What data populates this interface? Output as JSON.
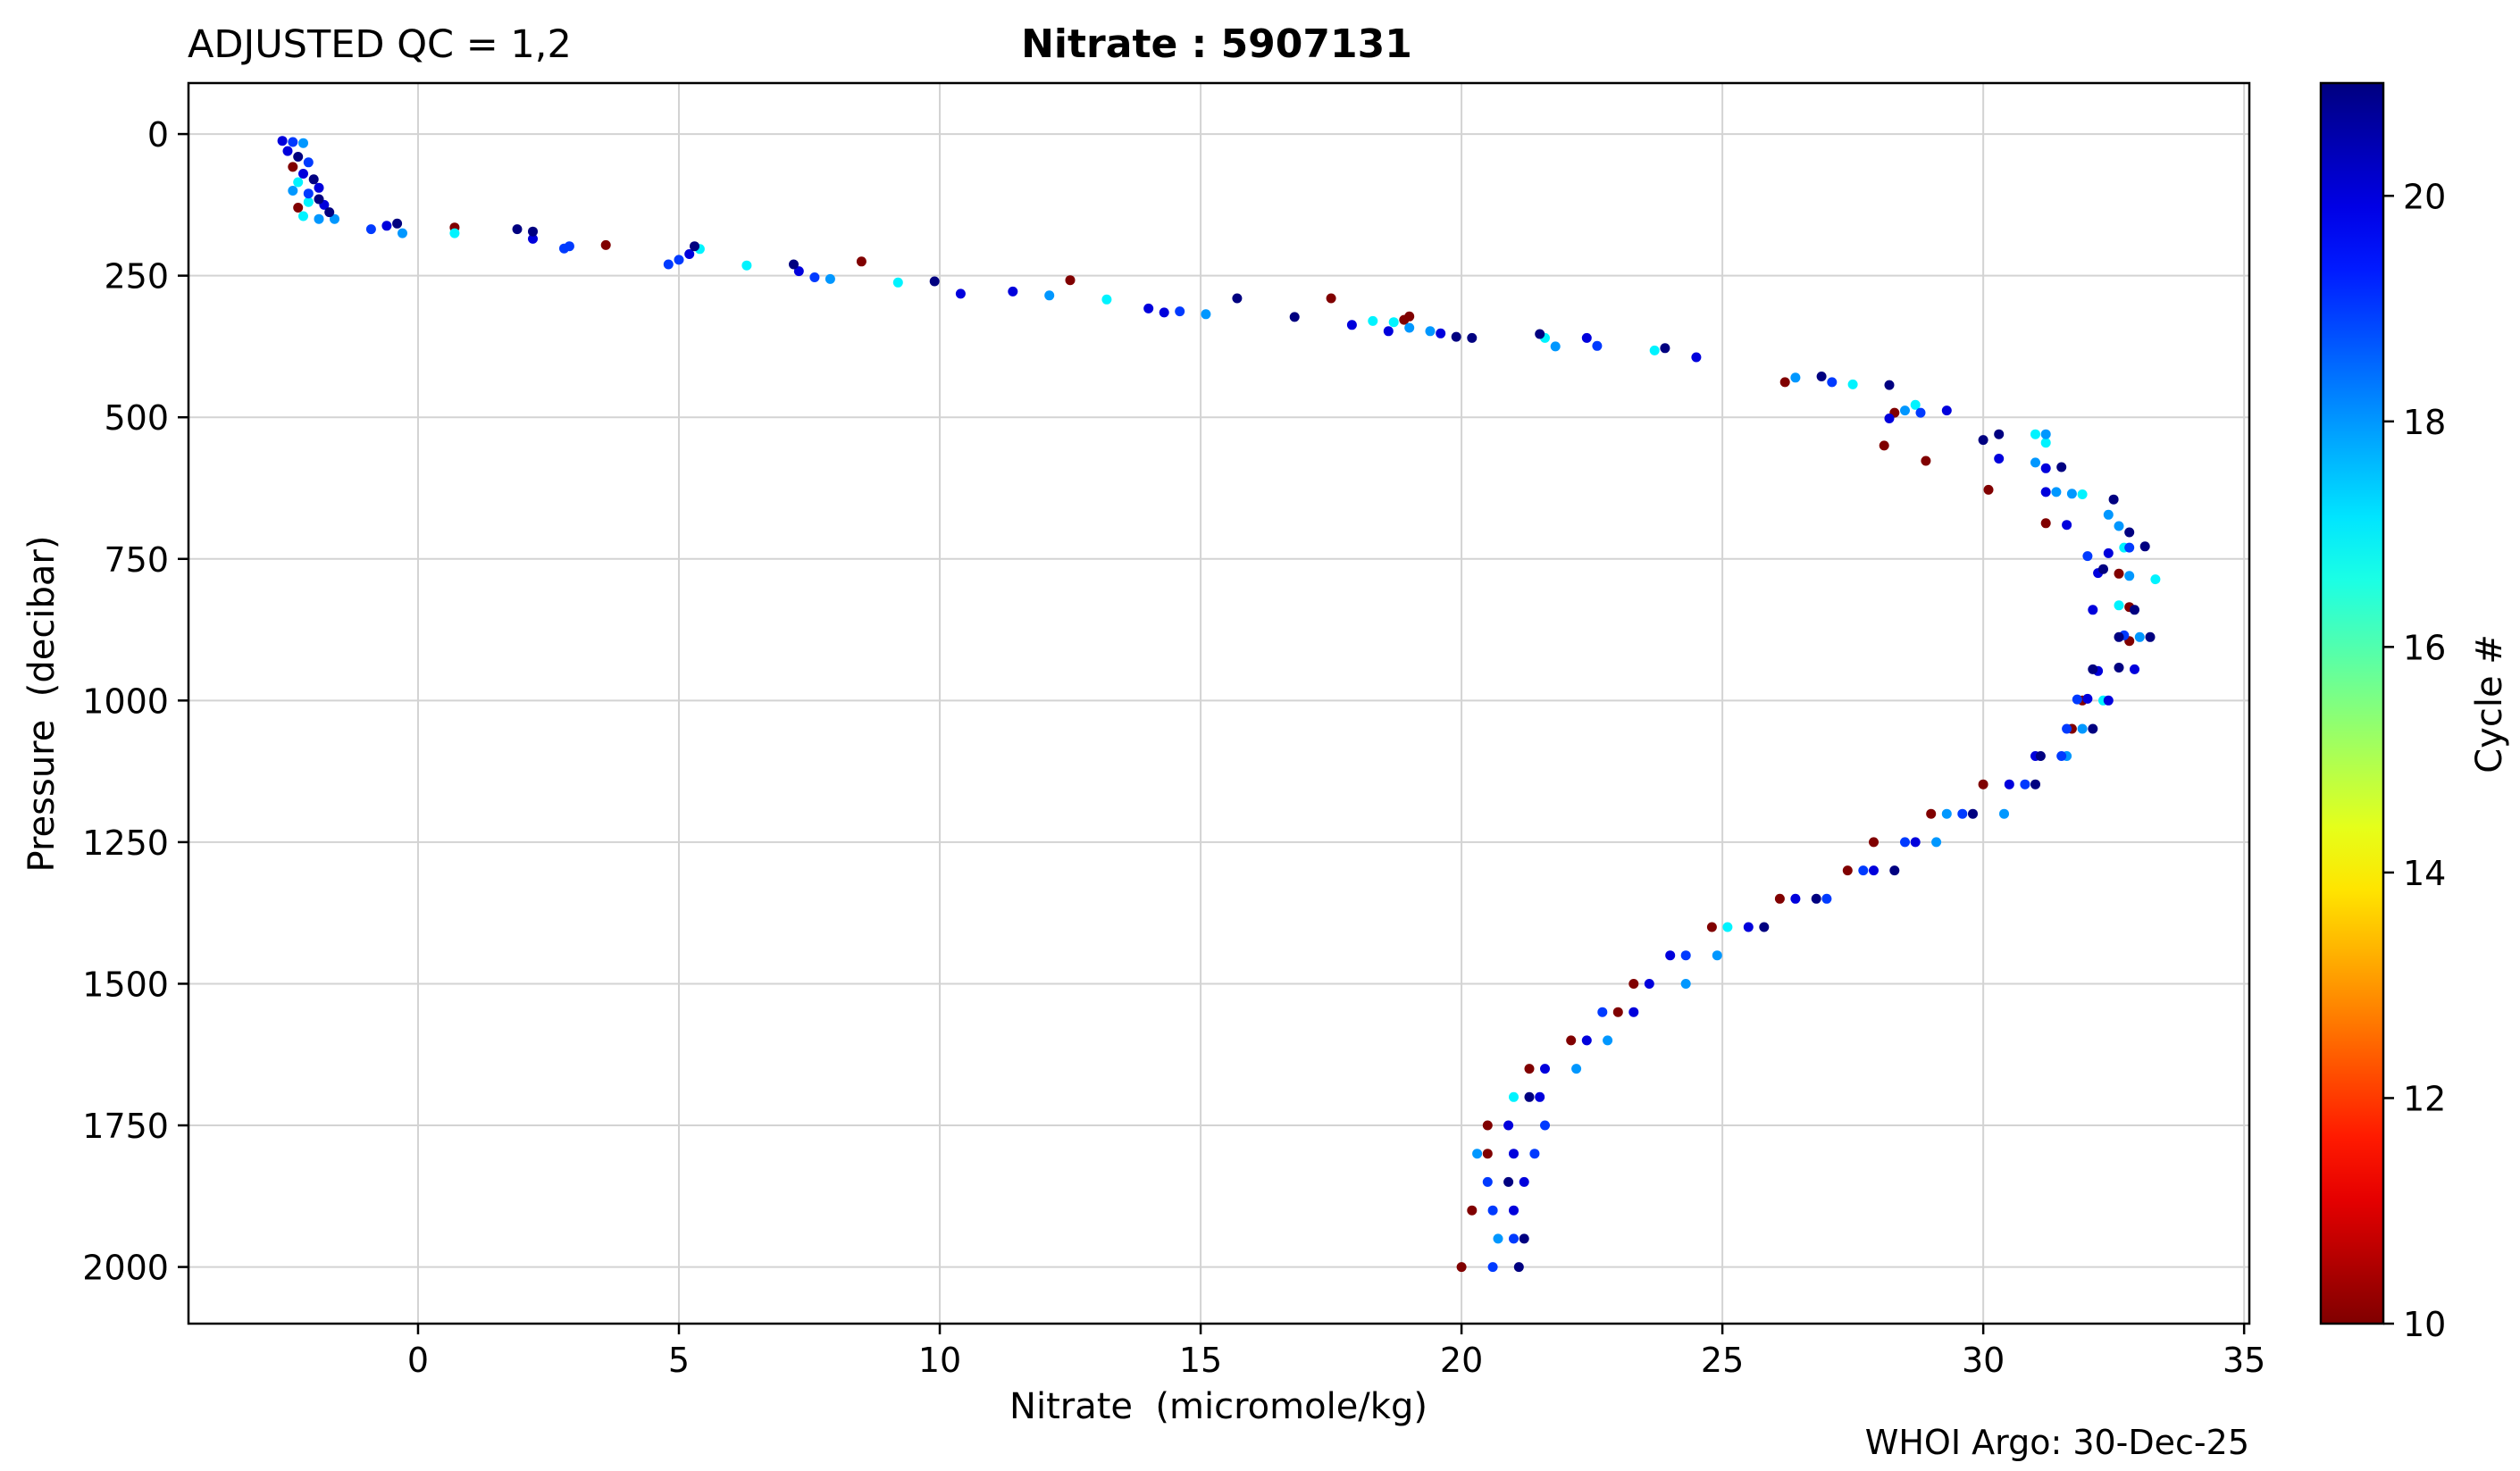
{
  "header": {
    "qc_label": "ADJUSTED QC = 1,2",
    "title_param": "Nitrate",
    "title_sep": " : ",
    "title_float": "5907131"
  },
  "footer": {
    "credit": "WHOI Argo: 30-Dec-25"
  },
  "colorbar": {
    "label": "Cycle #",
    "range": [
      10,
      21
    ],
    "ticks": [
      10,
      12,
      14,
      16,
      18,
      20
    ],
    "colormap": "jet",
    "colors": [
      "#800000",
      "#ff0000",
      "#ff8000",
      "#ffff00",
      "#80ff80",
      "#00ffff",
      "#0080ff",
      "#0000ff",
      "#000080"
    ]
  },
  "chart_data": {
    "type": "scatter",
    "xlabel": "Nitrate  (micromole/kg)",
    "ylabel": "Pressure  (decibar)",
    "xlim": [
      -4.4,
      35.1
    ],
    "ylim": [
      2100,
      -90
    ],
    "y_inverted": true,
    "xticks": [
      0,
      5,
      10,
      15,
      20,
      25,
      30,
      35
    ],
    "yticks": [
      0,
      250,
      500,
      750,
      1000,
      1250,
      1500,
      1750,
      2000
    ],
    "grid": true,
    "color_by": "cycle",
    "points": [
      {
        "x": -2.6,
        "y": 12,
        "c": 20
      },
      {
        "x": -2.4,
        "y": 14,
        "c": 19
      },
      {
        "x": -2.2,
        "y": 16,
        "c": 18
      },
      {
        "x": -2.5,
        "y": 30,
        "c": 20
      },
      {
        "x": -2.3,
        "y": 40,
        "c": 21
      },
      {
        "x": -2.1,
        "y": 50,
        "c": 19
      },
      {
        "x": -2.4,
        "y": 58,
        "c": 10
      },
      {
        "x": -2.2,
        "y": 70,
        "c": 20
      },
      {
        "x": -2.0,
        "y": 80,
        "c": 21
      },
      {
        "x": -2.3,
        "y": 85,
        "c": 17
      },
      {
        "x": -1.9,
        "y": 95,
        "c": 20
      },
      {
        "x": -2.1,
        "y": 105,
        "c": 19
      },
      {
        "x": -1.9,
        "y": 115,
        "c": 21
      },
      {
        "x": -1.8,
        "y": 125,
        "c": 20
      },
      {
        "x": -2.3,
        "y": 130,
        "c": 10
      },
      {
        "x": -1.7,
        "y": 138,
        "c": 21
      },
      {
        "x": -2.2,
        "y": 145,
        "c": 17
      },
      {
        "x": -1.9,
        "y": 150,
        "c": 18
      },
      {
        "x": -1.6,
        "y": 150,
        "c": 18
      },
      {
        "x": -2.1,
        "y": 120,
        "c": 17
      },
      {
        "x": -2.4,
        "y": 100,
        "c": 18
      },
      {
        "x": -0.9,
        "y": 168,
        "c": 19
      },
      {
        "x": -0.6,
        "y": 162,
        "c": 20
      },
      {
        "x": -0.4,
        "y": 158,
        "c": 21
      },
      {
        "x": -0.3,
        "y": 175,
        "c": 18
      },
      {
        "x": 0.7,
        "y": 165,
        "c": 10
      },
      {
        "x": 0.7,
        "y": 175,
        "c": 17
      },
      {
        "x": 1.9,
        "y": 168,
        "c": 21
      },
      {
        "x": 2.2,
        "y": 172,
        "c": 21
      },
      {
        "x": 2.2,
        "y": 185,
        "c": 20
      },
      {
        "x": 2.8,
        "y": 202,
        "c": 19
      },
      {
        "x": 2.9,
        "y": 198,
        "c": 19
      },
      {
        "x": 3.6,
        "y": 196,
        "c": 10
      },
      {
        "x": 4.8,
        "y": 230,
        "c": 19
      },
      {
        "x": 5.0,
        "y": 222,
        "c": 19
      },
      {
        "x": 5.2,
        "y": 212,
        "c": 20
      },
      {
        "x": 5.3,
        "y": 198,
        "c": 21
      },
      {
        "x": 5.4,
        "y": 203,
        "c": 17
      },
      {
        "x": 6.3,
        "y": 232,
        "c": 17
      },
      {
        "x": 7.2,
        "y": 230,
        "c": 21
      },
      {
        "x": 7.3,
        "y": 242,
        "c": 20
      },
      {
        "x": 7.6,
        "y": 253,
        "c": 19
      },
      {
        "x": 7.9,
        "y": 256,
        "c": 18
      },
      {
        "x": 8.5,
        "y": 225,
        "c": 10
      },
      {
        "x": 9.2,
        "y": 262,
        "c": 17
      },
      {
        "x": 9.9,
        "y": 260,
        "c": 21
      },
      {
        "x": 10.4,
        "y": 282,
        "c": 20
      },
      {
        "x": 11.4,
        "y": 278,
        "c": 20
      },
      {
        "x": 12.1,
        "y": 285,
        "c": 18
      },
      {
        "x": 12.5,
        "y": 258,
        "c": 10
      },
      {
        "x": 13.2,
        "y": 292,
        "c": 17
      },
      {
        "x": 14.0,
        "y": 308,
        "c": 20
      },
      {
        "x": 14.3,
        "y": 315,
        "c": 20
      },
      {
        "x": 14.6,
        "y": 313,
        "c": 19
      },
      {
        "x": 15.1,
        "y": 318,
        "c": 18
      },
      {
        "x": 15.7,
        "y": 290,
        "c": 21
      },
      {
        "x": 16.8,
        "y": 323,
        "c": 21
      },
      {
        "x": 17.5,
        "y": 290,
        "c": 10
      },
      {
        "x": 17.9,
        "y": 337,
        "c": 20
      },
      {
        "x": 18.3,
        "y": 330,
        "c": 17
      },
      {
        "x": 18.6,
        "y": 348,
        "c": 20
      },
      {
        "x": 18.7,
        "y": 332,
        "c": 17
      },
      {
        "x": 18.9,
        "y": 328,
        "c": 10
      },
      {
        "x": 19.0,
        "y": 322,
        "c": 10
      },
      {
        "x": 19.0,
        "y": 342,
        "c": 18
      },
      {
        "x": 19.4,
        "y": 348,
        "c": 18
      },
      {
        "x": 19.6,
        "y": 352,
        "c": 20
      },
      {
        "x": 19.9,
        "y": 358,
        "c": 21
      },
      {
        "x": 20.2,
        "y": 360,
        "c": 21
      },
      {
        "x": 21.5,
        "y": 353,
        "c": 21
      },
      {
        "x": 21.6,
        "y": 360,
        "c": 17
      },
      {
        "x": 21.8,
        "y": 375,
        "c": 18
      },
      {
        "x": 22.4,
        "y": 360,
        "c": 20
      },
      {
        "x": 22.6,
        "y": 374,
        "c": 19
      },
      {
        "x": 23.7,
        "y": 382,
        "c": 17
      },
      {
        "x": 23.9,
        "y": 378,
        "c": 21
      },
      {
        "x": 24.5,
        "y": 394,
        "c": 20
      },
      {
        "x": 26.2,
        "y": 438,
        "c": 10
      },
      {
        "x": 26.4,
        "y": 430,
        "c": 18
      },
      {
        "x": 26.9,
        "y": 428,
        "c": 21
      },
      {
        "x": 27.1,
        "y": 438,
        "c": 19
      },
      {
        "x": 27.5,
        "y": 442,
        "c": 17
      },
      {
        "x": 28.2,
        "y": 443,
        "c": 21
      },
      {
        "x": 28.2,
        "y": 502,
        "c": 20
      },
      {
        "x": 28.3,
        "y": 492,
        "c": 10
      },
      {
        "x": 28.5,
        "y": 488,
        "c": 18
      },
      {
        "x": 28.7,
        "y": 478,
        "c": 17
      },
      {
        "x": 28.8,
        "y": 492,
        "c": 19
      },
      {
        "x": 29.3,
        "y": 488,
        "c": 20
      },
      {
        "x": 28.1,
        "y": 550,
        "c": 10
      },
      {
        "x": 28.9,
        "y": 577,
        "c": 10
      },
      {
        "x": 30.0,
        "y": 540,
        "c": 21
      },
      {
        "x": 30.3,
        "y": 530,
        "c": 21
      },
      {
        "x": 30.3,
        "y": 573,
        "c": 20
      },
      {
        "x": 31.0,
        "y": 530,
        "c": 17
      },
      {
        "x": 31.2,
        "y": 530,
        "c": 18
      },
      {
        "x": 31.2,
        "y": 545,
        "c": 17
      },
      {
        "x": 31.0,
        "y": 580,
        "c": 18
      },
      {
        "x": 31.2,
        "y": 590,
        "c": 20
      },
      {
        "x": 31.5,
        "y": 588,
        "c": 21
      },
      {
        "x": 30.1,
        "y": 628,
        "c": 10
      },
      {
        "x": 31.2,
        "y": 632,
        "c": 20
      },
      {
        "x": 31.4,
        "y": 632,
        "c": 18
      },
      {
        "x": 31.7,
        "y": 635,
        "c": 18
      },
      {
        "x": 31.9,
        "y": 636,
        "c": 17
      },
      {
        "x": 32.5,
        "y": 645,
        "c": 21
      },
      {
        "x": 31.2,
        "y": 687,
        "c": 10
      },
      {
        "x": 31.6,
        "y": 690,
        "c": 20
      },
      {
        "x": 32.4,
        "y": 672,
        "c": 18
      },
      {
        "x": 32.6,
        "y": 692,
        "c": 18
      },
      {
        "x": 32.8,
        "y": 703,
        "c": 21
      },
      {
        "x": 32.0,
        "y": 745,
        "c": 19
      },
      {
        "x": 32.4,
        "y": 740,
        "c": 20
      },
      {
        "x": 32.7,
        "y": 730,
        "c": 17
      },
      {
        "x": 32.8,
        "y": 730,
        "c": 19
      },
      {
        "x": 33.1,
        "y": 728,
        "c": 21
      },
      {
        "x": 32.2,
        "y": 775,
        "c": 20
      },
      {
        "x": 32.3,
        "y": 768,
        "c": 21
      },
      {
        "x": 32.6,
        "y": 776,
        "c": 10
      },
      {
        "x": 32.8,
        "y": 780,
        "c": 18
      },
      {
        "x": 33.3,
        "y": 786,
        "c": 17
      },
      {
        "x": 32.1,
        "y": 840,
        "c": 20
      },
      {
        "x": 32.6,
        "y": 832,
        "c": 17
      },
      {
        "x": 32.8,
        "y": 835,
        "c": 10
      },
      {
        "x": 32.9,
        "y": 840,
        "c": 21
      },
      {
        "x": 32.6,
        "y": 888,
        "c": 21
      },
      {
        "x": 32.7,
        "y": 885,
        "c": 19
      },
      {
        "x": 32.8,
        "y": 895,
        "c": 10
      },
      {
        "x": 33.0,
        "y": 888,
        "c": 18
      },
      {
        "x": 33.2,
        "y": 888,
        "c": 21
      },
      {
        "x": 32.2,
        "y": 948,
        "c": 20
      },
      {
        "x": 32.1,
        "y": 945,
        "c": 21
      },
      {
        "x": 32.6,
        "y": 942,
        "c": 21
      },
      {
        "x": 32.9,
        "y": 945,
        "c": 20
      },
      {
        "x": 31.8,
        "y": 998,
        "c": 19
      },
      {
        "x": 31.9,
        "y": 1000,
        "c": 10
      },
      {
        "x": 32.0,
        "y": 997,
        "c": 20
      },
      {
        "x": 32.3,
        "y": 1000,
        "c": 17
      },
      {
        "x": 32.4,
        "y": 1000,
        "c": 20
      },
      {
        "x": 31.6,
        "y": 1050,
        "c": 19
      },
      {
        "x": 31.7,
        "y": 1050,
        "c": 10
      },
      {
        "x": 31.9,
        "y": 1050,
        "c": 18
      },
      {
        "x": 32.1,
        "y": 1050,
        "c": 21
      },
      {
        "x": 31.0,
        "y": 1098,
        "c": 20
      },
      {
        "x": 31.1,
        "y": 1098,
        "c": 21
      },
      {
        "x": 31.5,
        "y": 1098,
        "c": 19
      },
      {
        "x": 31.6,
        "y": 1098,
        "c": 18
      },
      {
        "x": 30.0,
        "y": 1148,
        "c": 10
      },
      {
        "x": 30.5,
        "y": 1148,
        "c": 20
      },
      {
        "x": 30.8,
        "y": 1148,
        "c": 19
      },
      {
        "x": 31.0,
        "y": 1148,
        "c": 21
      },
      {
        "x": 29.0,
        "y": 1200,
        "c": 10
      },
      {
        "x": 29.3,
        "y": 1200,
        "c": 18
      },
      {
        "x": 29.6,
        "y": 1200,
        "c": 19
      },
      {
        "x": 29.8,
        "y": 1200,
        "c": 21
      },
      {
        "x": 30.4,
        "y": 1200,
        "c": 18
      },
      {
        "x": 27.9,
        "y": 1250,
        "c": 10
      },
      {
        "x": 28.5,
        "y": 1250,
        "c": 19
      },
      {
        "x": 28.7,
        "y": 1250,
        "c": 20
      },
      {
        "x": 29.1,
        "y": 1250,
        "c": 18
      },
      {
        "x": 27.4,
        "y": 1300,
        "c": 10
      },
      {
        "x": 27.7,
        "y": 1300,
        "c": 19
      },
      {
        "x": 27.9,
        "y": 1300,
        "c": 20
      },
      {
        "x": 28.3,
        "y": 1300,
        "c": 21
      },
      {
        "x": 26.1,
        "y": 1350,
        "c": 10
      },
      {
        "x": 26.4,
        "y": 1350,
        "c": 20
      },
      {
        "x": 26.8,
        "y": 1350,
        "c": 21
      },
      {
        "x": 27.0,
        "y": 1350,
        "c": 19
      },
      {
        "x": 24.8,
        "y": 1400,
        "c": 10
      },
      {
        "x": 25.1,
        "y": 1400,
        "c": 17
      },
      {
        "x": 25.5,
        "y": 1400,
        "c": 20
      },
      {
        "x": 25.8,
        "y": 1400,
        "c": 21
      },
      {
        "x": 24.0,
        "y": 1450,
        "c": 20
      },
      {
        "x": 24.3,
        "y": 1450,
        "c": 19
      },
      {
        "x": 24.9,
        "y": 1450,
        "c": 18
      },
      {
        "x": 23.3,
        "y": 1500,
        "c": 10
      },
      {
        "x": 23.6,
        "y": 1500,
        "c": 20
      },
      {
        "x": 24.3,
        "y": 1500,
        "c": 18
      },
      {
        "x": 22.7,
        "y": 1550,
        "c": 19
      },
      {
        "x": 23.0,
        "y": 1550,
        "c": 10
      },
      {
        "x": 23.3,
        "y": 1550,
        "c": 20
      },
      {
        "x": 22.1,
        "y": 1600,
        "c": 10
      },
      {
        "x": 22.4,
        "y": 1600,
        "c": 20
      },
      {
        "x": 22.8,
        "y": 1600,
        "c": 18
      },
      {
        "x": 21.3,
        "y": 1650,
        "c": 10
      },
      {
        "x": 21.6,
        "y": 1650,
        "c": 20
      },
      {
        "x": 22.2,
        "y": 1650,
        "c": 18
      },
      {
        "x": 21.0,
        "y": 1700,
        "c": 17
      },
      {
        "x": 21.3,
        "y": 1700,
        "c": 21
      },
      {
        "x": 21.5,
        "y": 1700,
        "c": 20
      },
      {
        "x": 20.5,
        "y": 1750,
        "c": 10
      },
      {
        "x": 20.9,
        "y": 1750,
        "c": 20
      },
      {
        "x": 21.6,
        "y": 1750,
        "c": 19
      },
      {
        "x": 20.3,
        "y": 1800,
        "c": 18
      },
      {
        "x": 20.5,
        "y": 1800,
        "c": 10
      },
      {
        "x": 21.0,
        "y": 1800,
        "c": 20
      },
      {
        "x": 21.4,
        "y": 1800,
        "c": 19
      },
      {
        "x": 20.5,
        "y": 1850,
        "c": 19
      },
      {
        "x": 20.9,
        "y": 1850,
        "c": 21
      },
      {
        "x": 21.2,
        "y": 1850,
        "c": 20
      },
      {
        "x": 20.2,
        "y": 1900,
        "c": 10
      },
      {
        "x": 20.6,
        "y": 1900,
        "c": 19
      },
      {
        "x": 21.0,
        "y": 1900,
        "c": 20
      },
      {
        "x": 20.7,
        "y": 1950,
        "c": 18
      },
      {
        "x": 21.0,
        "y": 1950,
        "c": 19
      },
      {
        "x": 21.2,
        "y": 1950,
        "c": 21
      },
      {
        "x": 20.0,
        "y": 2000,
        "c": 10
      },
      {
        "x": 20.6,
        "y": 2000,
        "c": 19
      },
      {
        "x": 21.1,
        "y": 2000,
        "c": 21
      }
    ]
  }
}
